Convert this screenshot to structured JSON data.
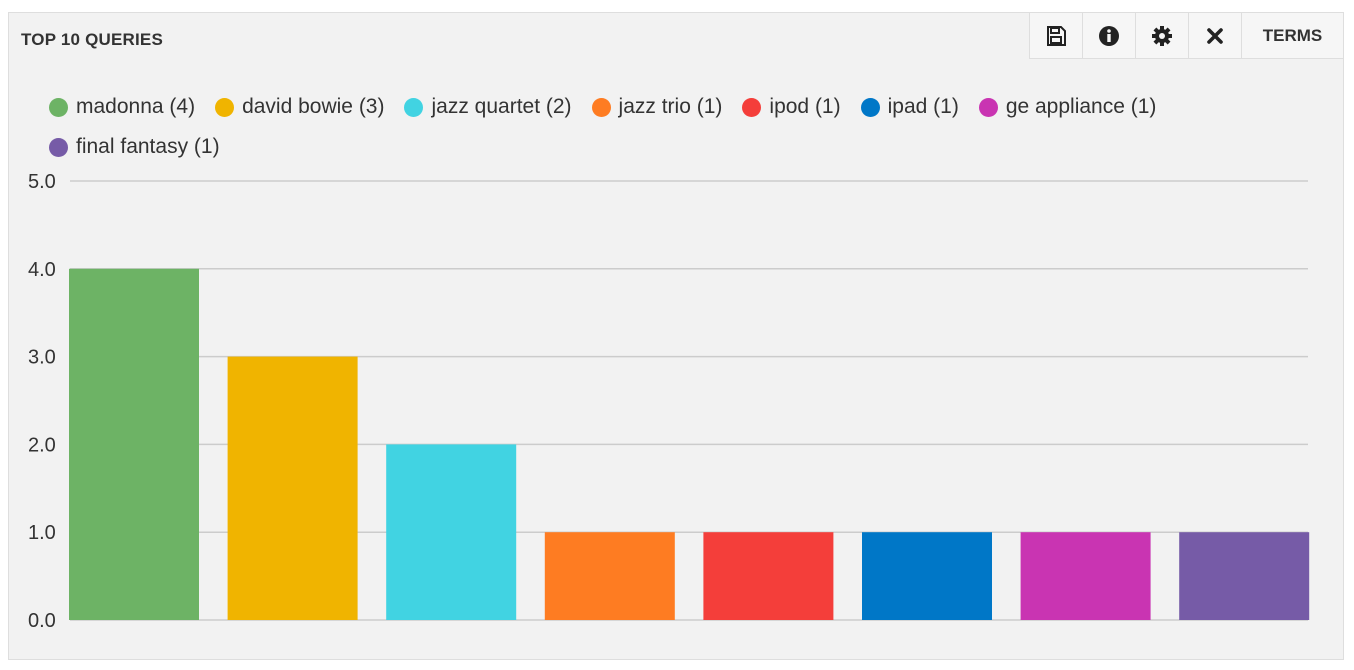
{
  "panel": {
    "title": "TOP 10 QUERIES",
    "toolbar": {
      "save_icon": "save-icon",
      "info_icon": "info-icon",
      "settings_icon": "gear-icon",
      "close_icon": "close-icon",
      "terms_label": "TERMS"
    }
  },
  "colors": {
    "panel_bg": "#f2f2f2",
    "grid": "#cccccc"
  },
  "chart_data": {
    "type": "bar",
    "categories": [
      "madonna",
      "david bowie",
      "jazz quartet",
      "jazz trio",
      "ipod",
      "ipad",
      "ge appliance",
      "final fantasy"
    ],
    "values": [
      4,
      3,
      2,
      1,
      1,
      1,
      1,
      1
    ],
    "colors": [
      "#6db365",
      "#f0b400",
      "#41d3e2",
      "#fe7c22",
      "#f43e3a",
      "#0077c7",
      "#c934b2",
      "#765ba7"
    ],
    "legend": [
      "madonna (4)",
      "david bowie (3)",
      "jazz quartet (2)",
      "jazz trio (1)",
      "ipod (1)",
      "ipad (1)",
      "ge appliance (1)",
      "final fantasy (1)"
    ],
    "yticks": [
      "0.0",
      "1.0",
      "2.0",
      "3.0",
      "4.0",
      "5.0"
    ],
    "ylim": [
      0,
      5
    ],
    "grid": true,
    "legend_position": "top"
  }
}
